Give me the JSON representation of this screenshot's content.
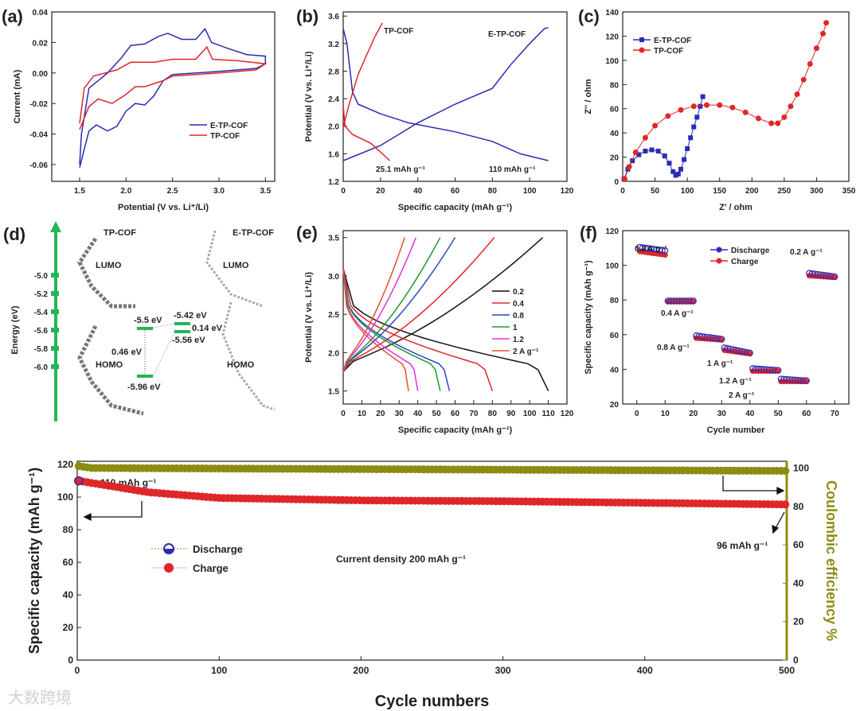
{
  "colors": {
    "blue": "#2b2bb5",
    "red": "#e0262a",
    "olive": "#8c8c12",
    "green": "#22b55a",
    "black": "#111111",
    "eblue": "#2848c8",
    "egreen": "#1f9a2a",
    "magenta": "#e030e0",
    "orange": "#e05030"
  },
  "watermark": "大数跨境",
  "chart_data": [
    {
      "id": "a",
      "panel_label": "(a)",
      "type": "line",
      "xlabel": "Potential (V vs. Li⁺/Li)",
      "ylabel": "Current (mA)",
      "xlim": [
        1.2,
        3.6
      ],
      "ylim": [
        -0.071,
        0.04
      ],
      "xticks": [
        1.5,
        2.0,
        2.5,
        3.0,
        3.5
      ],
      "xtick_labels": [
        "1.5",
        "2.0",
        "2.5",
        "3.0",
        "3.5"
      ],
      "yticks": [
        0.04,
        0.02,
        0.0,
        -0.02,
        -0.04,
        -0.06
      ],
      "ytick_labels": [
        "0.04",
        "0.02",
        "0.00",
        "-0.02",
        "-0.04",
        "-0.06"
      ],
      "legend": [
        "E-TP-COF",
        "TP-COF"
      ],
      "series": [
        {
          "name": "E-TP-COF",
          "color": "blue",
          "points": [
            [
              1.5,
              -0.06
            ],
            [
              1.52,
              -0.04
            ],
            [
              1.6,
              -0.01
            ],
            [
              1.8,
              0.0
            ],
            [
              1.95,
              0.01
            ],
            [
              2.05,
              0.018
            ],
            [
              2.2,
              0.019
            ],
            [
              2.35,
              0.024
            ],
            [
              2.45,
              0.026
            ],
            [
              2.6,
              0.022
            ],
            [
              2.75,
              0.022
            ],
            [
              2.85,
              0.029
            ],
            [
              2.92,
              0.02
            ],
            [
              3.1,
              0.016
            ],
            [
              3.3,
              0.012
            ],
            [
              3.5,
              0.011
            ],
            [
              3.5,
              0.006
            ],
            [
              3.4,
              0.003
            ],
            [
              3.0,
              0.001
            ],
            [
              2.5,
              -0.001
            ],
            [
              2.4,
              -0.005
            ],
            [
              2.3,
              -0.015
            ],
            [
              2.2,
              -0.021
            ],
            [
              2.1,
              -0.02
            ],
            [
              2.0,
              -0.025
            ],
            [
              1.9,
              -0.035
            ],
            [
              1.8,
              -0.038
            ],
            [
              1.68,
              -0.034
            ],
            [
              1.6,
              -0.038
            ],
            [
              1.55,
              -0.05
            ],
            [
              1.5,
              -0.062
            ]
          ]
        },
        {
          "name": "TP-COF",
          "color": "red",
          "points": [
            [
              1.5,
              -0.033
            ],
            [
              1.55,
              -0.01
            ],
            [
              1.65,
              -0.002
            ],
            [
              1.9,
              0.002
            ],
            [
              2.05,
              0.007
            ],
            [
              2.3,
              0.007
            ],
            [
              2.5,
              0.009
            ],
            [
              2.75,
              0.009
            ],
            [
              2.87,
              0.017
            ],
            [
              2.93,
              0.009
            ],
            [
              3.2,
              0.008
            ],
            [
              3.5,
              0.006
            ],
            [
              3.4,
              0.002
            ],
            [
              3.0,
              0.0
            ],
            [
              2.5,
              -0.002
            ],
            [
              2.4,
              -0.005
            ],
            [
              2.2,
              -0.009
            ],
            [
              2.1,
              -0.009
            ],
            [
              2.0,
              -0.014
            ],
            [
              1.85,
              -0.02
            ],
            [
              1.7,
              -0.017
            ],
            [
              1.6,
              -0.022
            ],
            [
              1.5,
              -0.037
            ]
          ]
        }
      ]
    },
    {
      "id": "b",
      "panel_label": "(b)",
      "type": "line",
      "xlabel": "Specific capacity (mAh g⁻¹)",
      "ylabel": "Potential (V vs. Li⁺/Li)",
      "xlim": [
        0,
        120
      ],
      "ylim": [
        1.2,
        3.66
      ],
      "xticks": [
        0,
        20,
        40,
        60,
        80,
        100,
        120
      ],
      "xtick_labels": [
        "0",
        "20",
        "40",
        "60",
        "80",
        "100",
        "120"
      ],
      "yticks": [
        1.2,
        1.6,
        2.0,
        2.4,
        2.8,
        3.2,
        3.6
      ],
      "ytick_labels": [
        "1.2",
        "1.6",
        "2.0",
        "2.4",
        "2.8",
        "3.2",
        "3.6"
      ],
      "annotations": [
        "TP-COF",
        "E-TP-COF",
        "25.1 mAh g⁻¹",
        "110 mAh g⁻¹"
      ],
      "series": [
        {
          "name": "E-TP-COF discharge",
          "color": "blue",
          "points": [
            [
              0,
              3.42
            ],
            [
              2,
              3.2
            ],
            [
              5,
              2.5
            ],
            [
              8,
              2.32
            ],
            [
              20,
              2.18
            ],
            [
              35,
              2.05
            ],
            [
              60,
              1.92
            ],
            [
              80,
              1.78
            ],
            [
              95,
              1.6
            ],
            [
              110,
              1.5
            ]
          ]
        },
        {
          "name": "E-TP-COF charge",
          "color": "blue",
          "points": [
            [
              0,
              1.5
            ],
            [
              20,
              1.72
            ],
            [
              40,
              2.05
            ],
            [
              60,
              2.32
            ],
            [
              80,
              2.55
            ],
            [
              90,
              2.9
            ],
            [
              100,
              3.2
            ],
            [
              108,
              3.42
            ],
            [
              110,
              3.43
            ]
          ]
        },
        {
          "name": "TP-COF discharge",
          "color": "red",
          "points": [
            [
              0,
              2.3
            ],
            [
              1,
              2.0
            ],
            [
              5,
              1.88
            ],
            [
              15,
              1.75
            ],
            [
              25,
              1.5
            ]
          ]
        },
        {
          "name": "TP-COF charge",
          "color": "red",
          "points": [
            [
              0,
              1.98
            ],
            [
              3,
              2.3
            ],
            [
              8,
              2.75
            ],
            [
              12,
              3.0
            ],
            [
              17,
              3.3
            ],
            [
              21,
              3.5
            ]
          ]
        }
      ]
    },
    {
      "id": "c",
      "panel_label": "(c)",
      "type": "scatter",
      "xlabel": "Z' / ohm",
      "ylabel": "Z'' / ohm",
      "xlim": [
        0,
        350
      ],
      "ylim": [
        0,
        140
      ],
      "xticks": [
        0,
        50,
        100,
        150,
        200,
        250,
        300,
        350
      ],
      "xtick_labels": [
        "0",
        "50",
        "100",
        "150",
        "200",
        "250",
        "300",
        "350"
      ],
      "yticks": [
        0,
        20,
        40,
        60,
        80,
        100,
        120,
        140
      ],
      "ytick_labels": [
        "0",
        "20",
        "40",
        "60",
        "80",
        "100",
        "120",
        "140"
      ],
      "legend": [
        "E-TP-COF",
        "TP-COF"
      ],
      "series": [
        {
          "name": "E-TP-COF",
          "color": "blue",
          "marker": "square",
          "points": [
            [
              2,
              2
            ],
            [
              8,
              10
            ],
            [
              15,
              17
            ],
            [
              25,
              22
            ],
            [
              35,
              25
            ],
            [
              45,
              26
            ],
            [
              55,
              25
            ],
            [
              65,
              21
            ],
            [
              72,
              15
            ],
            [
              78,
              8
            ],
            [
              82,
              5
            ],
            [
              86,
              6
            ],
            [
              90,
              10
            ],
            [
              95,
              18
            ],
            [
              100,
              27
            ],
            [
              105,
              36
            ],
            [
              110,
              45
            ],
            [
              115,
              53
            ],
            [
              120,
              62
            ],
            [
              124,
              70
            ]
          ]
        },
        {
          "name": "TP-COF",
          "color": "red",
          "marker": "circle",
          "points": [
            [
              3,
              2
            ],
            [
              10,
              12
            ],
            [
              20,
              24
            ],
            [
              35,
              36
            ],
            [
              50,
              46
            ],
            [
              70,
              54
            ],
            [
              90,
              59
            ],
            [
              110,
              62
            ],
            [
              130,
              63
            ],
            [
              150,
              63
            ],
            [
              170,
              61
            ],
            [
              190,
              57
            ],
            [
              210,
              52
            ],
            [
              230,
              48
            ],
            [
              240,
              48
            ],
            [
              250,
              53
            ],
            [
              260,
              62
            ],
            [
              270,
              72
            ],
            [
              280,
              84
            ],
            [
              290,
              97
            ],
            [
              300,
              110
            ],
            [
              310,
              122
            ],
            [
              315,
              131
            ]
          ]
        }
      ]
    },
    {
      "id": "e",
      "panel_label": "(e)",
      "type": "line",
      "xlabel": "Specific capacity (mAh g⁻¹)",
      "ylabel": "Potential (V vs. Li⁺/Li)",
      "xlim": [
        0,
        120
      ],
      "ylim": [
        1.33,
        3.59
      ],
      "xticks": [
        0,
        10,
        20,
        30,
        40,
        50,
        60,
        70,
        80,
        90,
        100,
        110,
        120
      ],
      "xtick_labels": [
        "0",
        "10",
        "20",
        "30",
        "40",
        "50",
        "60",
        "70",
        "80",
        "90",
        "100",
        "110",
        "120"
      ],
      "yticks": [
        1.5,
        2.0,
        2.5,
        3.0,
        3.5
      ],
      "ytick_labels": [
        "1.5",
        "2.0",
        "2.5",
        "3.0",
        "3.5"
      ],
      "series": [
        {
          "name": "0.2",
          "color": "black",
          "discharge_capacity": 110,
          "charge_capacity": 107
        },
        {
          "name": "0.4",
          "color": "red",
          "discharge_capacity": 80,
          "charge_capacity": 81
        },
        {
          "name": "0.8",
          "color": "eblue",
          "discharge_capacity": 57,
          "charge_capacity": 60
        },
        {
          "name": "1",
          "color": "egreen",
          "discharge_capacity": 52,
          "charge_capacity": 52
        },
        {
          "name": "1.2",
          "color": "magenta",
          "discharge_capacity": 40,
          "charge_capacity": 39
        },
        {
          "name": "2 A g⁻¹",
          "color": "orange",
          "discharge_capacity": 35,
          "charge_capacity": 33
        }
      ]
    },
    {
      "id": "f",
      "panel_label": "(f)",
      "type": "scatter",
      "xlabel": "Cycle number",
      "ylabel": "Specific capacity (mAh g⁻¹)",
      "xlim": [
        -5,
        75
      ],
      "ylim": [
        20,
        120
      ],
      "xticks": [
        0,
        10,
        20,
        30,
        40,
        50,
        60,
        70
      ],
      "xtick_labels": [
        "0",
        "10",
        "20",
        "30",
        "40",
        "50",
        "60",
        "70"
      ],
      "yticks": [
        20,
        40,
        60,
        80,
        100,
        120
      ],
      "ytick_labels": [
        "20",
        "40",
        "60",
        "80",
        "100",
        "120"
      ],
      "legend": [
        "Discharge",
        "Charge"
      ],
      "segments": [
        {
          "rate": "0.2 A g⁻¹",
          "cycles": [
            1,
            10
          ],
          "discharge": [
            110,
            108
          ],
          "charge": [
            108,
            106
          ]
        },
        {
          "rate": "0.4 A g⁻¹",
          "cycles": [
            11,
            20
          ],
          "discharge": [
            79,
            79
          ],
          "charge": [
            79,
            79
          ]
        },
        {
          "rate": "0.8 A g⁻¹",
          "cycles": [
            21,
            30
          ],
          "discharge": [
            59,
            57
          ],
          "charge": [
            58,
            57
          ]
        },
        {
          "rate": "1 A g⁻¹",
          "cycles": [
            31,
            40
          ],
          "discharge": [
            52,
            49
          ],
          "charge": [
            51,
            49
          ]
        },
        {
          "rate": "1.2 A g⁻¹",
          "cycles": [
            41,
            50
          ],
          "discharge": [
            40,
            39
          ],
          "charge": [
            39,
            39
          ]
        },
        {
          "rate": "2 A g⁻¹",
          "cycles": [
            51,
            60
          ],
          "discharge": [
            34,
            33
          ],
          "charge": [
            33,
            33
          ]
        },
        {
          "rate": "0.2 A g⁻¹",
          "cycles": [
            61,
            70
          ],
          "discharge": [
            95,
            93
          ],
          "charge": [
            94,
            93
          ]
        }
      ]
    },
    {
      "id": "g",
      "type": "scatter",
      "xlabel": "Cycle numbers",
      "ylabel": "Specific capacity (mAh g⁻¹)",
      "y2label": "Coulombic efficiency %",
      "xlim": [
        0,
        500
      ],
      "ylim": [
        0,
        122
      ],
      "y2lim": [
        0,
        103.5
      ],
      "xticks": [
        0,
        100,
        200,
        300,
        400,
        500
      ],
      "xtick_labels": [
        "0",
        "100",
        "200",
        "300",
        "400",
        "500"
      ],
      "yticks": [
        0,
        20,
        40,
        60,
        80,
        100,
        120
      ],
      "ytick_labels": [
        "0",
        "20",
        "40",
        "60",
        "80",
        "100",
        "120"
      ],
      "y2ticks": [
        0,
        20,
        40,
        60,
        80,
        100
      ],
      "y2tick_labels": [
        "0",
        "20",
        "40",
        "60",
        "80",
        "100"
      ],
      "legend": [
        "Discharge",
        "Charge"
      ],
      "annotations": [
        "110 mAh g⁻¹",
        "96 mAh g⁻¹",
        "Current density 200 mAh g⁻¹"
      ],
      "capacity_curve": [
        [
          1,
          110
        ],
        [
          50,
          103
        ],
        [
          100,
          99.5
        ],
        [
          200,
          98
        ],
        [
          300,
          97.5
        ],
        [
          400,
          96.5
        ],
        [
          500,
          95.5
        ]
      ],
      "efficiency_curve": [
        [
          1,
          101
        ],
        [
          10,
          100
        ],
        [
          500,
          98.5
        ]
      ]
    }
  ],
  "panel_d": {
    "panel_label": "(d)",
    "ylabel": "Energy (eV)",
    "yticks": [
      "-5.0",
      "-5.2",
      "-5.4",
      "-5.6",
      "-5.8",
      "-6.0"
    ],
    "molecules": [
      "TP-COF",
      "E-TP-COF"
    ],
    "orbitals": [
      "LUMO",
      "HOMO",
      "LUMO",
      "HOMO"
    ],
    "levels": {
      "tp_homo": "-5.5 eV",
      "tp_lumo": "-5.96 eV",
      "tp_gap": "0.46 eV",
      "e_homo": "-5.42 eV",
      "e_lumo": "-5.56 eV",
      "e_gap": "0.14 eV"
    }
  }
}
